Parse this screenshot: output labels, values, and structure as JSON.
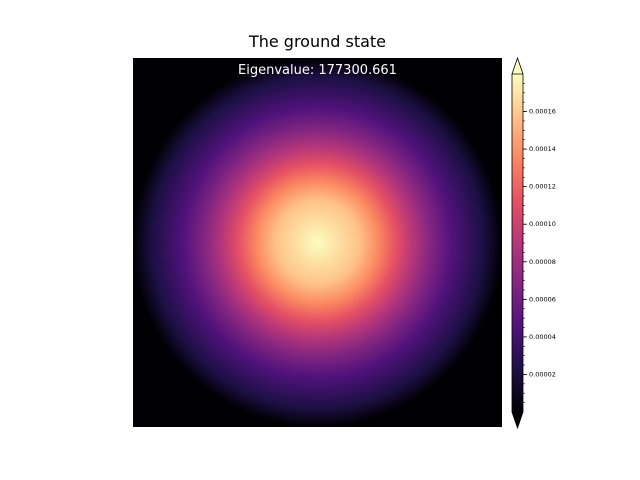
{
  "chart_data": {
    "type": "heatmap",
    "title": "The ground state",
    "annotation": "Eigenvalue: 177300.661",
    "colormap": "magma",
    "grid": false,
    "value_range": [
      0,
      0.00018
    ],
    "peak_value": 0.00018,
    "peak_position": "center",
    "colorbar": {
      "ticks": [
        2e-05,
        4e-05,
        6e-05,
        8e-05,
        0.0001,
        0.00012,
        0.00014,
        0.00016
      ],
      "tick_labels": [
        "0.00002",
        "0.00004",
        "0.00006",
        "0.00008",
        "0.00010",
        "0.00012",
        "0.00014",
        "0.00016"
      ],
      "extend": "both",
      "placement": "right"
    },
    "colors": [
      "#000004",
      "#1c1044",
      "#4f127b",
      "#812581",
      "#b5367a",
      "#e55064",
      "#fb8761",
      "#fec287",
      "#fcfdbf"
    ]
  }
}
